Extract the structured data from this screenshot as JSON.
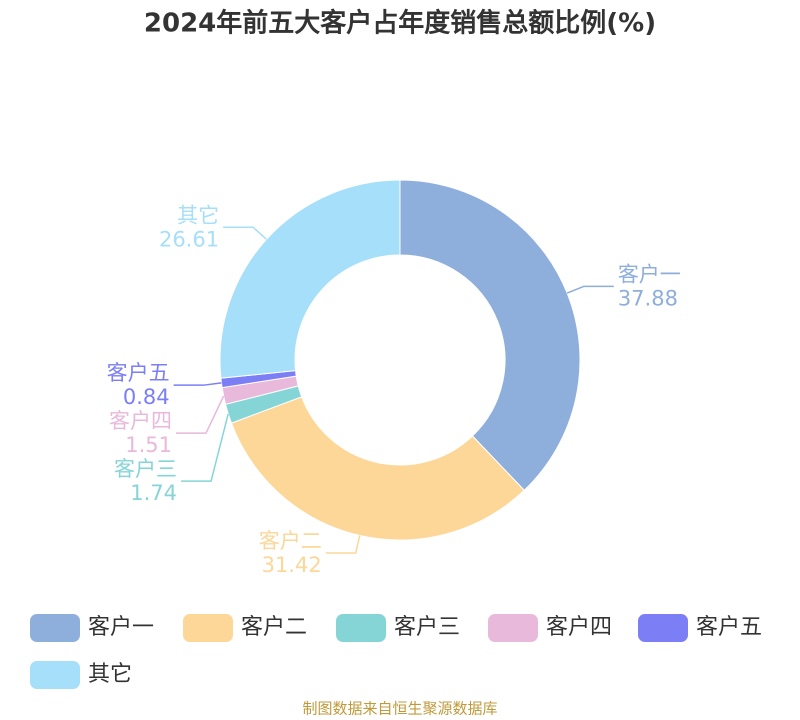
{
  "chart_data": {
    "type": "donut",
    "title": "2024年前五大客户占年度销售总额比例(%)",
    "categories": [
      "客户一",
      "客户二",
      "客户三",
      "客户四",
      "客户五",
      "其它"
    ],
    "values": [
      37.88,
      31.42,
      1.74,
      1.51,
      0.84,
      26.61
    ],
    "colors": [
      "#8eaedb",
      "#fdd798",
      "#86d5d6",
      "#e8b9db",
      "#7b7ef5",
      "#a5dff9"
    ],
    "legend": "bottom",
    "source": "制图数据来自恒生聚源数据库"
  }
}
